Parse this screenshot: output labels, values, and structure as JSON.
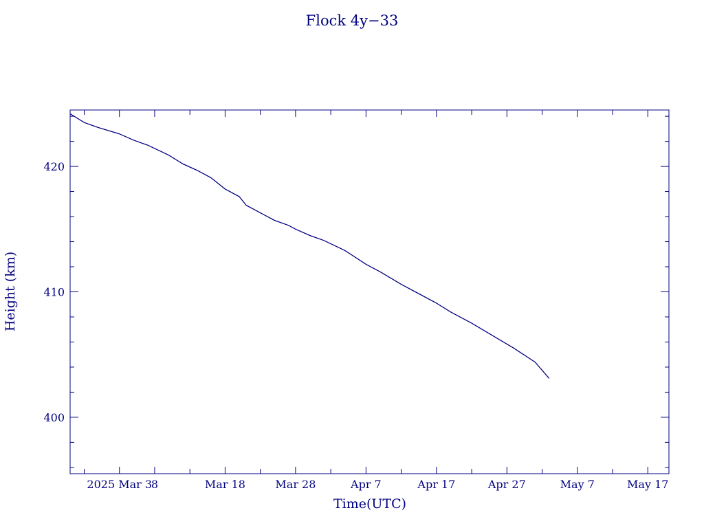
{
  "chart_data": {
    "type": "line",
    "title": "Flock 4y−33",
    "xlabel": "Time(UTC)",
    "ylabel": "Height (km)",
    "colors": {
      "axis": "#00007f",
      "series": "#00007f",
      "background": "#ffffff"
    },
    "x_range": [
      "2025-02-24",
      "2025-05-20"
    ],
    "ylim": [
      395.5,
      424.5
    ],
    "grid": false,
    "x_ticks": [
      {
        "date": "2025-02-26",
        "label": ""
      },
      {
        "date": "2025-03-03",
        "label": "2025 Mar  3"
      },
      {
        "date": "2025-03-08",
        "label": "8"
      },
      {
        "date": "2025-03-13",
        "label": ""
      },
      {
        "date": "2025-03-18",
        "label": "Mar 18"
      },
      {
        "date": "2025-03-23",
        "label": ""
      },
      {
        "date": "2025-03-28",
        "label": "Mar 28"
      },
      {
        "date": "2025-04-02",
        "label": ""
      },
      {
        "date": "2025-04-07",
        "label": "Apr  7"
      },
      {
        "date": "2025-04-12",
        "label": ""
      },
      {
        "date": "2025-04-17",
        "label": "Apr 17"
      },
      {
        "date": "2025-04-22",
        "label": ""
      },
      {
        "date": "2025-04-27",
        "label": "Apr 27"
      },
      {
        "date": "2025-05-02",
        "label": ""
      },
      {
        "date": "2025-05-07",
        "label": "May  7"
      },
      {
        "date": "2025-05-12",
        "label": ""
      },
      {
        "date": "2025-05-17",
        "label": "May 17"
      }
    ],
    "y_major_ticks": [
      400,
      410,
      420
    ],
    "y_minor_ticks": [
      396,
      398,
      402,
      404,
      406,
      408,
      412,
      414,
      416,
      418,
      422,
      424
    ],
    "series": [
      {
        "x": [
          "2025-02-24",
          "2025-02-26",
          "2025-02-28",
          "2025-03-03",
          "2025-03-05",
          "2025-03-07",
          "2025-03-10",
          "2025-03-12",
          "2025-03-14",
          "2025-03-16",
          "2025-03-18",
          "2025-03-20",
          "2025-03-21",
          "2025-03-23",
          "2025-03-25",
          "2025-03-27",
          "2025-03-28",
          "2025-03-30",
          "2025-04-01",
          "2025-04-04",
          "2025-04-07",
          "2025-04-09",
          "2025-04-12",
          "2025-04-15",
          "2025-04-17",
          "2025-04-19",
          "2025-04-22",
          "2025-04-25",
          "2025-04-28",
          "2025-05-01",
          "2025-05-03"
        ],
        "y": [
          424.2,
          423.5,
          423.1,
          422.6,
          422.1,
          421.7,
          420.9,
          420.2,
          419.7,
          419.1,
          418.2,
          417.6,
          416.9,
          416.3,
          415.7,
          415.3,
          415.0,
          414.5,
          414.1,
          413.3,
          412.2,
          411.6,
          410.6,
          409.7,
          409.1,
          408.4,
          407.5,
          406.5,
          405.5,
          404.4,
          403.1
        ]
      }
    ]
  }
}
